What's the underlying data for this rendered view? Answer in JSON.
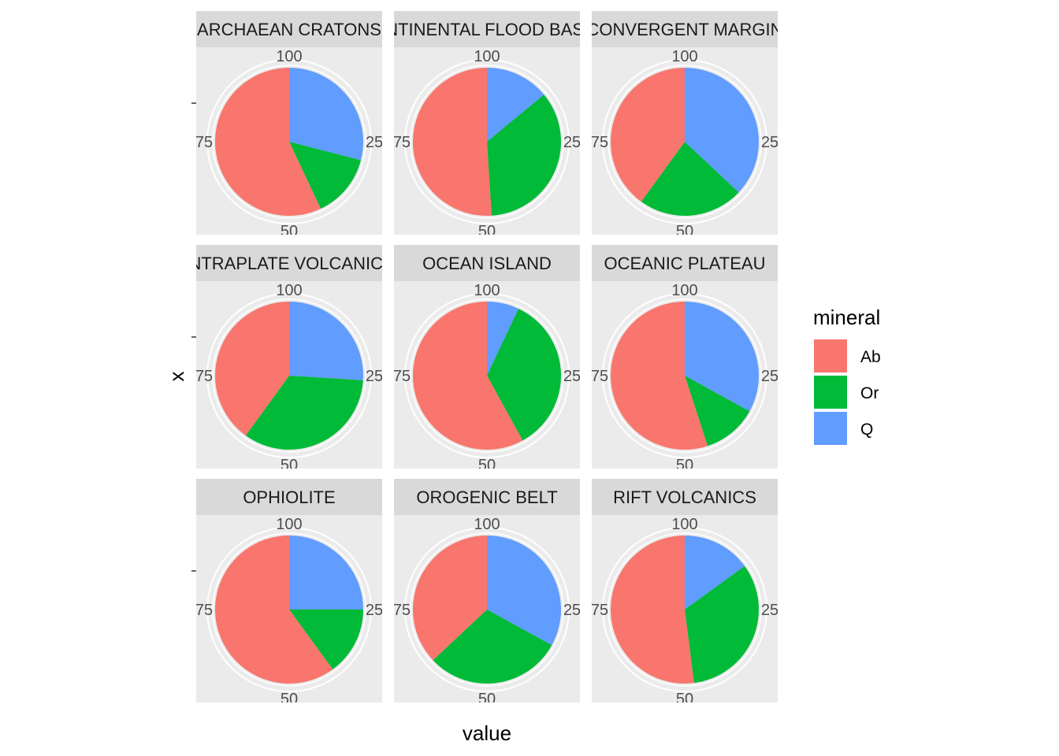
{
  "chart_data": {
    "type": "pie",
    "xlabel": "value",
    "ylabel": "x",
    "theta_ticks": [
      "25",
      "50",
      "75",
      "100"
    ],
    "series": [
      {
        "name": "Ab",
        "color": "#F8766D"
      },
      {
        "name": "Or",
        "color": "#00BA38"
      },
      {
        "name": "Q",
        "color": "#619CFF"
      }
    ],
    "legend": {
      "title": "mineral",
      "position": "right"
    },
    "panels": [
      {
        "title": "ARCHAEAN CRATONS",
        "values": {
          "Ab": 57,
          "Or": 14,
          "Q": 29
        }
      },
      {
        "title": "CONTINENTAL FLOOD BASALT",
        "values": {
          "Ab": 51,
          "Or": 35,
          "Q": 14
        }
      },
      {
        "title": "CONVERGENT MARGIN",
        "values": {
          "Ab": 40,
          "Or": 23,
          "Q": 37
        }
      },
      {
        "title": "INTRAPLATE VOLCANICS",
        "values": {
          "Ab": 40,
          "Or": 34,
          "Q": 26
        }
      },
      {
        "title": "OCEAN ISLAND",
        "values": {
          "Ab": 58,
          "Or": 35,
          "Q": 7
        }
      },
      {
        "title": "OCEANIC PLATEAU",
        "values": {
          "Ab": 55,
          "Or": 12,
          "Q": 33
        }
      },
      {
        "title": "OPHIOLITE",
        "values": {
          "Ab": 60,
          "Or": 15,
          "Q": 25
        }
      },
      {
        "title": "OROGENIC BELT",
        "values": {
          "Ab": 37,
          "Or": 30,
          "Q": 33
        }
      },
      {
        "title": "RIFT VOLCANICS",
        "values": {
          "Ab": 52,
          "Or": 33,
          "Q": 15
        }
      }
    ]
  }
}
